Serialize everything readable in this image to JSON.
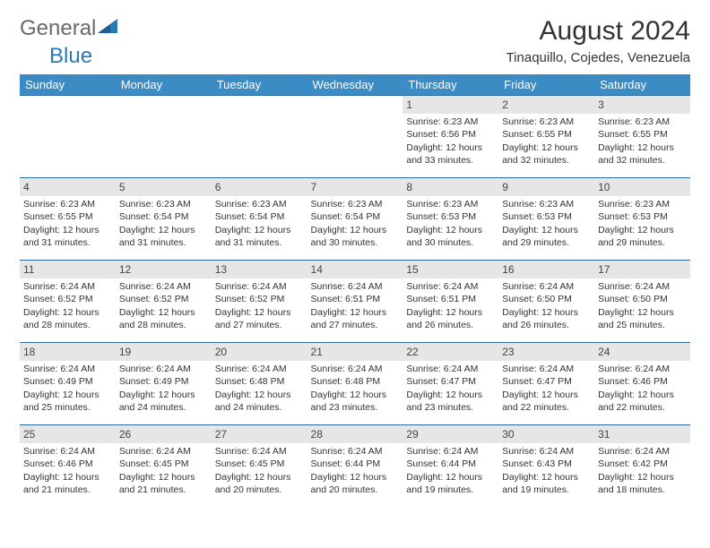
{
  "logo": {
    "general": "General",
    "blue": "Blue"
  },
  "month_title": "August 2024",
  "location": "Tinaquillo, Cojedes, Venezuela",
  "colors": {
    "header_bg": "#3b8bc4",
    "header_text": "#ffffff",
    "daynum_bg": "#e6e6e6",
    "border": "#2a6aa0",
    "body_text": "#333333",
    "logo_gray": "#6a6a6a",
    "logo_blue": "#2a7ab8",
    "page_bg": "#ffffff"
  },
  "weekdays": [
    "Sunday",
    "Monday",
    "Tuesday",
    "Wednesday",
    "Thursday",
    "Friday",
    "Saturday"
  ],
  "weeks": [
    [
      {
        "day": "",
        "sunrise": "",
        "sunset": "",
        "daylight": ""
      },
      {
        "day": "",
        "sunrise": "",
        "sunset": "",
        "daylight": ""
      },
      {
        "day": "",
        "sunrise": "",
        "sunset": "",
        "daylight": ""
      },
      {
        "day": "",
        "sunrise": "",
        "sunset": "",
        "daylight": ""
      },
      {
        "day": "1",
        "sunrise": "Sunrise: 6:23 AM",
        "sunset": "Sunset: 6:56 PM",
        "daylight": "Daylight: 12 hours and 33 minutes."
      },
      {
        "day": "2",
        "sunrise": "Sunrise: 6:23 AM",
        "sunset": "Sunset: 6:55 PM",
        "daylight": "Daylight: 12 hours and 32 minutes."
      },
      {
        "day": "3",
        "sunrise": "Sunrise: 6:23 AM",
        "sunset": "Sunset: 6:55 PM",
        "daylight": "Daylight: 12 hours and 32 minutes."
      }
    ],
    [
      {
        "day": "4",
        "sunrise": "Sunrise: 6:23 AM",
        "sunset": "Sunset: 6:55 PM",
        "daylight": "Daylight: 12 hours and 31 minutes."
      },
      {
        "day": "5",
        "sunrise": "Sunrise: 6:23 AM",
        "sunset": "Sunset: 6:54 PM",
        "daylight": "Daylight: 12 hours and 31 minutes."
      },
      {
        "day": "6",
        "sunrise": "Sunrise: 6:23 AM",
        "sunset": "Sunset: 6:54 PM",
        "daylight": "Daylight: 12 hours and 31 minutes."
      },
      {
        "day": "7",
        "sunrise": "Sunrise: 6:23 AM",
        "sunset": "Sunset: 6:54 PM",
        "daylight": "Daylight: 12 hours and 30 minutes."
      },
      {
        "day": "8",
        "sunrise": "Sunrise: 6:23 AM",
        "sunset": "Sunset: 6:53 PM",
        "daylight": "Daylight: 12 hours and 30 minutes."
      },
      {
        "day": "9",
        "sunrise": "Sunrise: 6:23 AM",
        "sunset": "Sunset: 6:53 PM",
        "daylight": "Daylight: 12 hours and 29 minutes."
      },
      {
        "day": "10",
        "sunrise": "Sunrise: 6:23 AM",
        "sunset": "Sunset: 6:53 PM",
        "daylight": "Daylight: 12 hours and 29 minutes."
      }
    ],
    [
      {
        "day": "11",
        "sunrise": "Sunrise: 6:24 AM",
        "sunset": "Sunset: 6:52 PM",
        "daylight": "Daylight: 12 hours and 28 minutes."
      },
      {
        "day": "12",
        "sunrise": "Sunrise: 6:24 AM",
        "sunset": "Sunset: 6:52 PM",
        "daylight": "Daylight: 12 hours and 28 minutes."
      },
      {
        "day": "13",
        "sunrise": "Sunrise: 6:24 AM",
        "sunset": "Sunset: 6:52 PM",
        "daylight": "Daylight: 12 hours and 27 minutes."
      },
      {
        "day": "14",
        "sunrise": "Sunrise: 6:24 AM",
        "sunset": "Sunset: 6:51 PM",
        "daylight": "Daylight: 12 hours and 27 minutes."
      },
      {
        "day": "15",
        "sunrise": "Sunrise: 6:24 AM",
        "sunset": "Sunset: 6:51 PM",
        "daylight": "Daylight: 12 hours and 26 minutes."
      },
      {
        "day": "16",
        "sunrise": "Sunrise: 6:24 AM",
        "sunset": "Sunset: 6:50 PM",
        "daylight": "Daylight: 12 hours and 26 minutes."
      },
      {
        "day": "17",
        "sunrise": "Sunrise: 6:24 AM",
        "sunset": "Sunset: 6:50 PM",
        "daylight": "Daylight: 12 hours and 25 minutes."
      }
    ],
    [
      {
        "day": "18",
        "sunrise": "Sunrise: 6:24 AM",
        "sunset": "Sunset: 6:49 PM",
        "daylight": "Daylight: 12 hours and 25 minutes."
      },
      {
        "day": "19",
        "sunrise": "Sunrise: 6:24 AM",
        "sunset": "Sunset: 6:49 PM",
        "daylight": "Daylight: 12 hours and 24 minutes."
      },
      {
        "day": "20",
        "sunrise": "Sunrise: 6:24 AM",
        "sunset": "Sunset: 6:48 PM",
        "daylight": "Daylight: 12 hours and 24 minutes."
      },
      {
        "day": "21",
        "sunrise": "Sunrise: 6:24 AM",
        "sunset": "Sunset: 6:48 PM",
        "daylight": "Daylight: 12 hours and 23 minutes."
      },
      {
        "day": "22",
        "sunrise": "Sunrise: 6:24 AM",
        "sunset": "Sunset: 6:47 PM",
        "daylight": "Daylight: 12 hours and 23 minutes."
      },
      {
        "day": "23",
        "sunrise": "Sunrise: 6:24 AM",
        "sunset": "Sunset: 6:47 PM",
        "daylight": "Daylight: 12 hours and 22 minutes."
      },
      {
        "day": "24",
        "sunrise": "Sunrise: 6:24 AM",
        "sunset": "Sunset: 6:46 PM",
        "daylight": "Daylight: 12 hours and 22 minutes."
      }
    ],
    [
      {
        "day": "25",
        "sunrise": "Sunrise: 6:24 AM",
        "sunset": "Sunset: 6:46 PM",
        "daylight": "Daylight: 12 hours and 21 minutes."
      },
      {
        "day": "26",
        "sunrise": "Sunrise: 6:24 AM",
        "sunset": "Sunset: 6:45 PM",
        "daylight": "Daylight: 12 hours and 21 minutes."
      },
      {
        "day": "27",
        "sunrise": "Sunrise: 6:24 AM",
        "sunset": "Sunset: 6:45 PM",
        "daylight": "Daylight: 12 hours and 20 minutes."
      },
      {
        "day": "28",
        "sunrise": "Sunrise: 6:24 AM",
        "sunset": "Sunset: 6:44 PM",
        "daylight": "Daylight: 12 hours and 20 minutes."
      },
      {
        "day": "29",
        "sunrise": "Sunrise: 6:24 AM",
        "sunset": "Sunset: 6:44 PM",
        "daylight": "Daylight: 12 hours and 19 minutes."
      },
      {
        "day": "30",
        "sunrise": "Sunrise: 6:24 AM",
        "sunset": "Sunset: 6:43 PM",
        "daylight": "Daylight: 12 hours and 19 minutes."
      },
      {
        "day": "31",
        "sunrise": "Sunrise: 6:24 AM",
        "sunset": "Sunset: 6:42 PM",
        "daylight": "Daylight: 12 hours and 18 minutes."
      }
    ]
  ]
}
